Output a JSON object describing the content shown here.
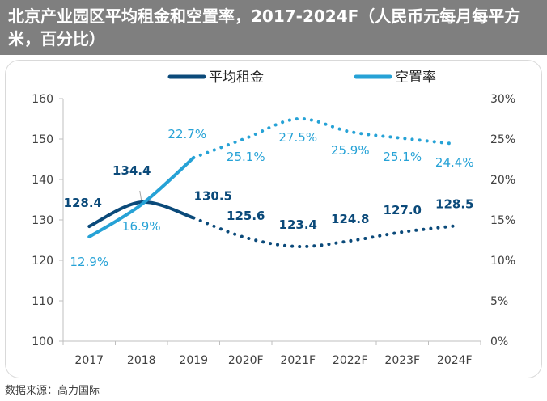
{
  "header": {
    "title": "北京产业园区平均租金和空置率，2017-2024F（人民币元每月每平方米，百分比）"
  },
  "footer": {
    "source": "数据来源：高力国际"
  },
  "colors": {
    "rent": "#0b4a7a",
    "vacancy": "#26a2d6",
    "title_bg": "#7f7f7f",
    "axis_text": "#404040"
  },
  "chart_data": {
    "type": "line",
    "categories": [
      "2017",
      "2018",
      "2019",
      "2020F",
      "2021F",
      "2022F",
      "2023F",
      "2024F"
    ],
    "actual_count": 3,
    "legend_position": "top",
    "grid": false,
    "series": [
      {
        "name": "平均租金",
        "axis": "left",
        "values": [
          128.4,
          134.4,
          130.5,
          125.6,
          123.4,
          124.8,
          127.0,
          128.5
        ],
        "labels": [
          "128.4",
          "134.4",
          "130.5",
          "125.6",
          "123.4",
          "124.8",
          "127.0",
          "128.5"
        ],
        "label_offsets": [
          [
            -8,
            -24
          ],
          [
            -12,
            -34
          ],
          [
            24,
            -22
          ],
          [
            0,
            -22
          ],
          [
            0,
            -22
          ],
          [
            0,
            -22
          ],
          [
            0,
            -22
          ],
          [
            0,
            -22
          ]
        ]
      },
      {
        "name": "空置率",
        "axis": "right",
        "values": [
          12.9,
          16.9,
          22.7,
          25.1,
          27.5,
          25.9,
          25.1,
          24.4
        ],
        "labels": [
          "12.9%",
          "16.9%",
          "22.7%",
          "25.1%",
          "27.5%",
          "25.9%",
          "25.1%",
          "24.4%"
        ],
        "label_offsets": [
          [
            0,
            36
          ],
          [
            0,
            32
          ],
          [
            -8,
            -24
          ],
          [
            0,
            28
          ],
          [
            0,
            28
          ],
          [
            0,
            28
          ],
          [
            0,
            28
          ],
          [
            0,
            28
          ]
        ]
      }
    ],
    "y_left": {
      "ylim": [
        100,
        160
      ],
      "ticks": [
        100,
        110,
        120,
        130,
        140,
        150,
        160
      ],
      "tick_labels": [
        "100",
        "110",
        "120",
        "130",
        "140",
        "150",
        "160"
      ]
    },
    "y_right": {
      "ylim": [
        0,
        30
      ],
      "ticks": [
        0,
        5,
        10,
        15,
        20,
        25,
        30
      ],
      "tick_labels": [
        "0%",
        "5%",
        "10%",
        "15%",
        "20%",
        "25%",
        "30%"
      ]
    }
  }
}
